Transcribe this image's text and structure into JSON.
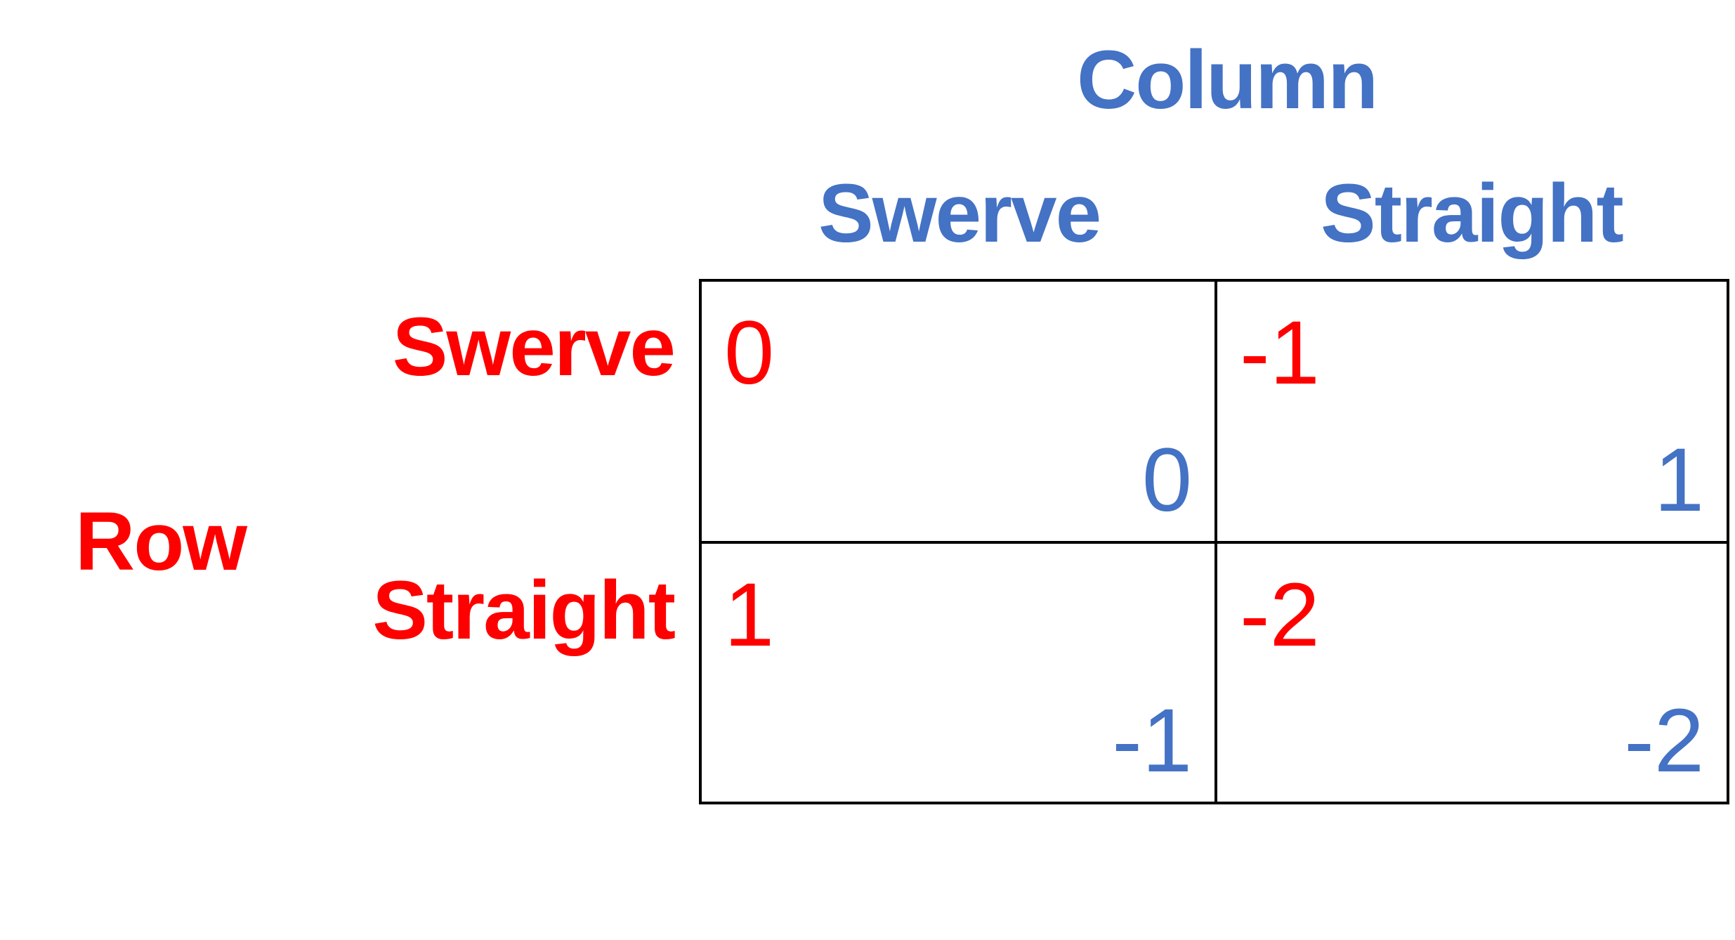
{
  "colors": {
    "column_player": "#4472C4",
    "row_player": "#FF0000",
    "grid": "#000000"
  },
  "column_player": {
    "name": "Column",
    "strategies": [
      "Swerve",
      "Straight"
    ]
  },
  "row_player": {
    "name": "Row",
    "strategies": [
      "Swerve",
      "Straight"
    ]
  },
  "payoffs": [
    [
      {
        "row": "0",
        "column": "0"
      },
      {
        "row": "-1",
        "column": "1"
      }
    ],
    [
      {
        "row": "1",
        "column": "-1"
      },
      {
        "row": "-2",
        "column": "-2"
      }
    ]
  ]
}
